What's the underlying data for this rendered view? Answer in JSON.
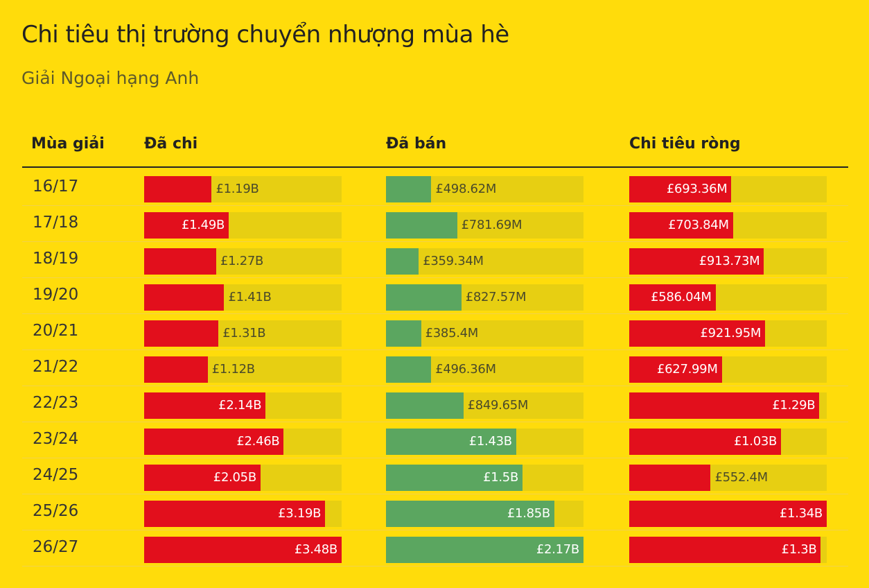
{
  "title": "Chi tiêu thị trường chuyển nhượng mùa hè",
  "subtitle": "Giải Ngoại hạng Anh",
  "headers": {
    "season": "Mùa giải",
    "spent": "Đã chi",
    "sold": "Đã bán",
    "net": "Chi tiêu ròng"
  },
  "colors": {
    "background": "#FFDC0B",
    "spent": "#E20F1C",
    "sold": "#5BA660",
    "net": "#E20F1C",
    "track": "#E7CF12"
  },
  "chart_data": {
    "type": "bar",
    "orientation": "horizontal",
    "categories": [
      "16/17",
      "17/18",
      "18/19",
      "19/20",
      "20/21",
      "21/22",
      "22/23",
      "23/24",
      "24/25",
      "25/26",
      "26/27"
    ],
    "series": [
      {
        "name": "Đã chi",
        "unit": "£M",
        "values": [
          1190,
          1490,
          1270,
          1410,
          1310,
          1120,
          2140,
          2460,
          2050,
          3190,
          3480
        ],
        "labels": [
          "£1.19B",
          "£1.49B",
          "£1.27B",
          "£1.41B",
          "£1.31B",
          "£1.12B",
          "£2.14B",
          "£2.46B",
          "£2.05B",
          "£3.19B",
          "£3.48B"
        ]
      },
      {
        "name": "Đã bán",
        "unit": "£M",
        "values": [
          498.62,
          781.69,
          359.34,
          827.57,
          385.4,
          496.36,
          849.65,
          1430,
          1500,
          1850,
          2170
        ],
        "labels": [
          "£498.62M",
          "£781.69M",
          "£359.34M",
          "£827.57M",
          "£385.4M",
          "£496.36M",
          "£849.65M",
          "£1.43B",
          "£1.5B",
          "£1.85B",
          "£2.17B"
        ]
      },
      {
        "name": "Chi tiêu ròng",
        "unit": "£M",
        "values": [
          693.36,
          703.84,
          913.73,
          586.04,
          921.95,
          627.99,
          1290,
          1030,
          552.4,
          1340,
          1300
        ],
        "labels": [
          "£693.36M",
          "£703.84M",
          "£913.73M",
          "£586.04M",
          "£921.95M",
          "£627.99M",
          "£1.29B",
          "£1.03B",
          "£552.4M",
          "£1.34B",
          "£1.3B"
        ]
      }
    ],
    "xlim": [
      [
        0,
        3480
      ],
      [
        0,
        2170
      ],
      [
        0,
        1340
      ]
    ]
  }
}
